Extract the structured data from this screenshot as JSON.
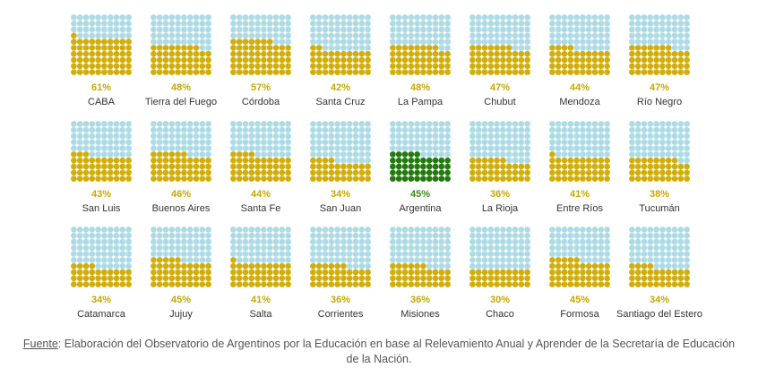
{
  "chart_data": {
    "type": "waffle",
    "total_dots_per_chart": 100,
    "colors": {
      "empty": "#acdbe6",
      "filled": "#d1ae0b",
      "highlight": "#237a0e",
      "label": "#c9a700",
      "label_highlight": "#3e8a1f"
    },
    "items": [
      {
        "name": "CABA",
        "label": "61%",
        "value": 61
      },
      {
        "name": "Tierra del Fuego",
        "label": "48%",
        "value": 48
      },
      {
        "name": "Córdoba",
        "label": "57%",
        "value": 57
      },
      {
        "name": "Santa Cruz",
        "label": "42%",
        "value": 42
      },
      {
        "name": "La Pampa",
        "label": "48%",
        "value": 48
      },
      {
        "name": "Chubut",
        "label": "47%",
        "value": 47
      },
      {
        "name": "Mendoza",
        "label": "44%",
        "value": 44
      },
      {
        "name": "Río Negro",
        "label": "47%",
        "value": 47
      },
      {
        "name": "San Luis",
        "label": "43%",
        "value": 43
      },
      {
        "name": "Buenos Aires",
        "label": "46%",
        "value": 46
      },
      {
        "name": "Santa Fe",
        "label": "44%",
        "value": 44
      },
      {
        "name": "San Juan",
        "label": "34%",
        "value": 34
      },
      {
        "name": "Argentina",
        "label": "45%",
        "value": 45,
        "highlight": true
      },
      {
        "name": "La Rioja",
        "label": "36%",
        "value": 36
      },
      {
        "name": "Entre Ríos",
        "label": "41%",
        "value": 41
      },
      {
        "name": "Tucumán",
        "label": "38%",
        "value": 38
      },
      {
        "name": "Catamarca",
        "label": "34%",
        "value": 34
      },
      {
        "name": "Jujuy",
        "label": "45%",
        "value": 45
      },
      {
        "name": "Salta",
        "label": "41%",
        "value": 41
      },
      {
        "name": "Corrientes",
        "label": "36%",
        "value": 36
      },
      {
        "name": "Misiones",
        "label": "36%",
        "value": 36
      },
      {
        "name": "Chaco",
        "label": "30%",
        "value": 30
      },
      {
        "name": "Formosa",
        "label": "45%",
        "value": 45
      },
      {
        "name": "Santiago del Estero",
        "label": "34%",
        "value": 34
      }
    ]
  },
  "source": {
    "label": "Fuente",
    "text": ": Elaboración del Observatorio de Argentinos por la Educación en base al Relevamiento Anual y Aprender de la Secretaría de Educación de la Nación."
  }
}
